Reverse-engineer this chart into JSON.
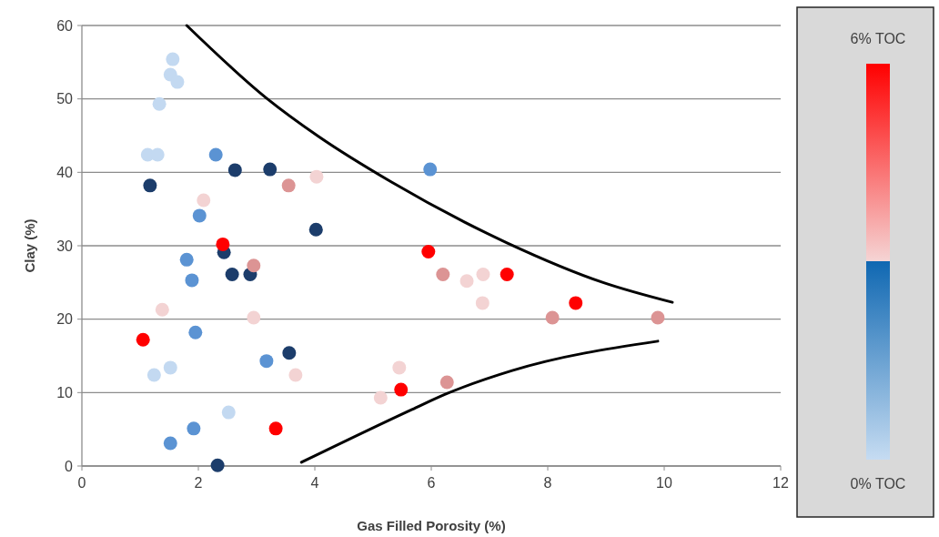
{
  "chart_data": {
    "type": "scatter",
    "xlabel": "Gas Filled Porosity (%)",
    "ylabel": "Clay (%)",
    "xlim": [
      0,
      12
    ],
    "ylim": [
      0,
      60
    ],
    "xticks": [
      0,
      2,
      4,
      6,
      8,
      10,
      12
    ],
    "yticks": [
      0,
      10,
      20,
      30,
      40,
      50,
      60
    ],
    "grid": "y",
    "annotations": [
      "6% TOC",
      "0% TOC"
    ],
    "series": [
      {
        "marker": "circle",
        "x": [
          1.56,
          1.52,
          1.64,
          1.33,
          1.13,
          1.3,
          2.3,
          2.63,
          3.23,
          1.17,
          3.55,
          4.03,
          2.09,
          2.02,
          4.02,
          2.44,
          2.42,
          1.8,
          1.89,
          2.58,
          2.89,
          2.95,
          1.38,
          2.95,
          1.05,
          1.95,
          3.56,
          3.17,
          1.52,
          1.24,
          3.67,
          2.52,
          1.92,
          3.33,
          1.52,
          2.33,
          5.98,
          5.95,
          6.2,
          6.61,
          6.89,
          7.3,
          6.88,
          8.48,
          8.08,
          9.89,
          5.45,
          5.48,
          5.13,
          6.27
        ],
        "values": [
          55.4,
          53.3,
          52.3,
          49.3,
          42.4,
          42.4,
          42.4,
          40.3,
          40.4,
          38.2,
          38.2,
          39.4,
          36.2,
          34.1,
          32.2,
          29.1,
          30.2,
          28.1,
          25.3,
          26.1,
          26.1,
          27.3,
          21.3,
          20.2,
          17.2,
          18.2,
          15.4,
          14.3,
          13.4,
          12.4,
          12.4,
          7.3,
          5.1,
          5.1,
          3.1,
          0.1,
          40.4,
          29.2,
          26.1,
          25.2,
          26.1,
          26.1,
          22.2,
          22.2,
          20.2,
          20.2,
          13.4,
          10.4,
          9.3,
          11.4
        ],
        "colors": [
          "#c3d9f1",
          "#c3d9f1",
          "#c3d9f1",
          "#c3d9f1",
          "#c3d9f1",
          "#c3d9f1",
          "#5b93d3",
          "#1c3d6b",
          "#1c3d6b",
          "#1c3d6b",
          "#dc9494",
          "#f3d3d3",
          "#f3d3d3",
          "#5b93d3",
          "#1c3d6b",
          "#1c3d6b",
          "#ff0000",
          "#5b93d3",
          "#5b93d3",
          "#1c3d6b",
          "#1c3d6b",
          "#dc9494",
          "#f3d3d3",
          "#f3d3d3",
          "#ff0000",
          "#5b93d3",
          "#1c3d6b",
          "#5b93d3",
          "#c3d9f1",
          "#c3d9f1",
          "#f3d3d3",
          "#c3d9f1",
          "#5b93d3",
          "#ff0000",
          "#5b93d3",
          "#1c3d6b",
          "#5b93d3",
          "#ff0000",
          "#dc9494",
          "#f3d3d3",
          "#f3d3d3",
          "#ff0000",
          "#f3d3d3",
          "#ff0000",
          "#dc9494",
          "#dc9494",
          "#f3d3d3",
          "#ff0000",
          "#f3d3d3",
          "#dc9494"
        ]
      },
      {
        "type": "line",
        "color": "#000000",
        "x": [
          1.8,
          3.17,
          4.06,
          5.31,
          7.3,
          8.95,
          10.14
        ],
        "values": [
          60,
          50.1,
          44.9,
          38.7,
          30.4,
          25,
          22.3
        ]
      },
      {
        "type": "line",
        "color": "#000000",
        "x": [
          3.77,
          5.67,
          6.25,
          7.39,
          9.89
        ],
        "values": [
          0.5,
          7.7,
          9.8,
          13,
          17
        ]
      }
    ]
  }
}
